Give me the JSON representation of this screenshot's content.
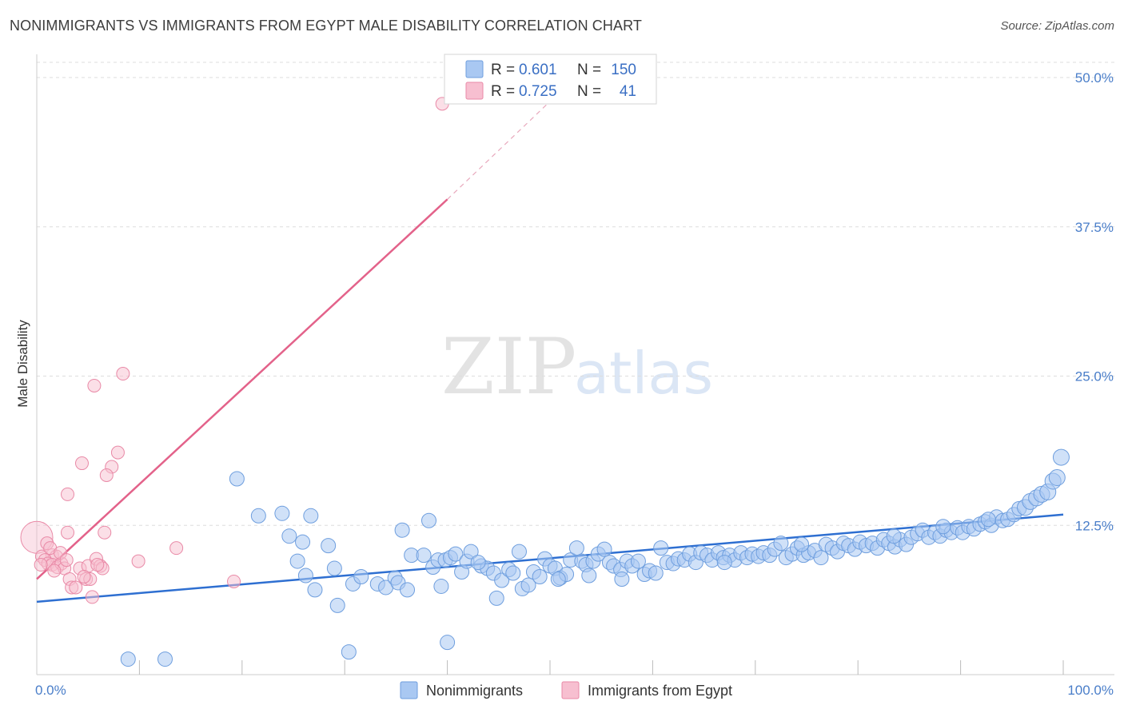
{
  "title": "NONIMMIGRANTS VS IMMIGRANTS FROM EGYPT MALE DISABILITY CORRELATION CHART",
  "source": "Source: ZipAtlas.com",
  "watermark": {
    "zip": "ZIP",
    "atlas": "atlas"
  },
  "colors": {
    "blue_fill": "#a9c8f2",
    "blue_stroke": "#6e9ede",
    "blue_line": "#2e6fd1",
    "pink_fill": "#f7bfd0",
    "pink_stroke": "#e98aa7",
    "pink_line": "#e3628a",
    "tick_text": "#4a7ec9",
    "grid": "#dddddd"
  },
  "legend": {
    "rows": [
      {
        "r_label": "R =",
        "r_value": "0.601",
        "n_label": "N =",
        "n_value": "150"
      },
      {
        "r_label": "R =",
        "r_value": "0.725",
        "n_label": "N =",
        "n_value": "41"
      }
    ]
  },
  "bottom_legend": [
    "Nonimmigrants",
    "Immigrants from Egypt"
  ],
  "chart_data": {
    "type": "scatter",
    "xlabel": "",
    "ylabel": "Male Disability",
    "xlim": [
      0,
      100
    ],
    "ylim": [
      0,
      50
    ],
    "x_tick_labels": [
      "0.0%",
      "100.0%"
    ],
    "y_ticks": [
      12.5,
      25.0,
      37.5,
      50.0
    ],
    "y_tick_labels": [
      "12.5%",
      "25.0%",
      "37.5%",
      "50.0%"
    ],
    "series": [
      {
        "name": "Nonimmigrants",
        "r": 0.601,
        "n": 150,
        "trend": {
          "x0": 0,
          "y0": 6.1,
          "x1": 100,
          "y1": 13.4
        },
        "points": [
          [
            8.9,
            1.3
          ],
          [
            12.5,
            1.3
          ],
          [
            19.5,
            16.4
          ],
          [
            21.6,
            13.3
          ],
          [
            23.9,
            13.5
          ],
          [
            24.6,
            11.6
          ],
          [
            25.4,
            9.5
          ],
          [
            25.9,
            11.1
          ],
          [
            26.2,
            8.3
          ],
          [
            26.7,
            13.3
          ],
          [
            27.1,
            7.1
          ],
          [
            28.4,
            10.8
          ],
          [
            29.0,
            8.9
          ],
          [
            29.3,
            5.8
          ],
          [
            30.4,
            1.9
          ],
          [
            30.8,
            7.6
          ],
          [
            31.6,
            8.2
          ],
          [
            33.2,
            7.6
          ],
          [
            34.0,
            7.3
          ],
          [
            34.9,
            8.1
          ],
          [
            35.2,
            7.7
          ],
          [
            35.6,
            12.1
          ],
          [
            36.1,
            7.1
          ],
          [
            36.5,
            10.0
          ],
          [
            37.7,
            10.0
          ],
          [
            38.2,
            12.9
          ],
          [
            38.6,
            9.0
          ],
          [
            39.1,
            9.6
          ],
          [
            39.4,
            7.4
          ],
          [
            39.8,
            9.6
          ],
          [
            40.0,
            2.7
          ],
          [
            40.3,
            9.8
          ],
          [
            40.8,
            10.1
          ],
          [
            41.4,
            8.6
          ],
          [
            41.9,
            9.5
          ],
          [
            42.3,
            10.3
          ],
          [
            43.3,
            9.1
          ],
          [
            43.9,
            8.9
          ],
          [
            44.5,
            8.5
          ],
          [
            44.8,
            6.4
          ],
          [
            45.3,
            7.9
          ],
          [
            46.0,
            8.8
          ],
          [
            46.4,
            8.5
          ],
          [
            47.3,
            7.2
          ],
          [
            47.9,
            7.5
          ],
          [
            48.4,
            8.6
          ],
          [
            49.0,
            8.2
          ],
          [
            49.5,
            9.7
          ],
          [
            50.0,
            9.1
          ],
          [
            50.5,
            8.9
          ],
          [
            51.0,
            8.1
          ],
          [
            51.6,
            8.4
          ],
          [
            52.0,
            9.6
          ],
          [
            52.6,
            10.6
          ],
          [
            53.1,
            9.5
          ],
          [
            53.5,
            9.2
          ],
          [
            54.2,
            9.5
          ],
          [
            54.7,
            10.1
          ],
          [
            55.3,
            10.5
          ],
          [
            55.8,
            9.4
          ],
          [
            56.2,
            9.1
          ],
          [
            56.9,
            8.8
          ],
          [
            57.5,
            9.5
          ],
          [
            58.0,
            9.1
          ],
          [
            58.6,
            9.5
          ],
          [
            59.2,
            8.4
          ],
          [
            59.7,
            8.7
          ],
          [
            60.3,
            8.5
          ],
          [
            60.8,
            10.6
          ],
          [
            61.4,
            9.4
          ],
          [
            62.0,
            9.3
          ],
          [
            62.5,
            9.7
          ],
          [
            63.1,
            9.6
          ],
          [
            63.6,
            10.1
          ],
          [
            64.2,
            9.4
          ],
          [
            64.7,
            10.2
          ],
          [
            65.3,
            10.0
          ],
          [
            65.8,
            9.6
          ],
          [
            66.4,
            10.2
          ],
          [
            66.9,
            9.8
          ],
          [
            67.5,
            10.0
          ],
          [
            68.0,
            9.6
          ],
          [
            68.6,
            10.2
          ],
          [
            69.2,
            9.8
          ],
          [
            69.7,
            10.1
          ],
          [
            70.3,
            9.9
          ],
          [
            70.8,
            10.2
          ],
          [
            71.4,
            10.0
          ],
          [
            71.9,
            10.5
          ],
          [
            72.5,
            11.0
          ],
          [
            73.0,
            9.8
          ],
          [
            73.6,
            10.1
          ],
          [
            74.1,
            10.6
          ],
          [
            74.7,
            10.0
          ],
          [
            75.2,
            10.2
          ],
          [
            75.8,
            10.4
          ],
          [
            76.4,
            9.8
          ],
          [
            76.9,
            10.9
          ],
          [
            77.5,
            10.6
          ],
          [
            78.0,
            10.3
          ],
          [
            78.6,
            11.0
          ],
          [
            79.1,
            10.8
          ],
          [
            79.7,
            10.5
          ],
          [
            80.2,
            11.1
          ],
          [
            80.8,
            10.8
          ],
          [
            81.4,
            11.0
          ],
          [
            81.9,
            10.6
          ],
          [
            82.5,
            11.3
          ],
          [
            83.0,
            11.0
          ],
          [
            83.6,
            10.7
          ],
          [
            84.1,
            11.3
          ],
          [
            84.7,
            10.9
          ],
          [
            85.2,
            11.5
          ],
          [
            85.8,
            11.8
          ],
          [
            86.3,
            12.1
          ],
          [
            86.9,
            11.5
          ],
          [
            87.5,
            11.9
          ],
          [
            88.0,
            11.6
          ],
          [
            88.6,
            12.1
          ],
          [
            89.1,
            11.9
          ],
          [
            89.7,
            12.3
          ],
          [
            90.2,
            11.9
          ],
          [
            90.8,
            12.4
          ],
          [
            91.3,
            12.2
          ],
          [
            91.9,
            12.6
          ],
          [
            92.4,
            12.8
          ],
          [
            93.0,
            12.5
          ],
          [
            93.5,
            13.2
          ],
          [
            94.1,
            12.9
          ],
          [
            94.6,
            13.0
          ],
          [
            95.2,
            13.4
          ],
          [
            95.7,
            13.9
          ],
          [
            96.3,
            14.0
          ],
          [
            96.8,
            14.5
          ],
          [
            97.4,
            14.8
          ],
          [
            97.9,
            15.1
          ],
          [
            98.5,
            15.3
          ],
          [
            99.0,
            16.2
          ],
          [
            99.4,
            16.5
          ],
          [
            99.8,
            18.2
          ],
          [
            43.0,
            9.4
          ],
          [
            47.0,
            10.3
          ],
          [
            50.8,
            8.0
          ],
          [
            53.8,
            8.3
          ],
          [
            57.0,
            8.0
          ],
          [
            67.0,
            9.4
          ],
          [
            74.5,
            10.9
          ],
          [
            83.5,
            11.6
          ],
          [
            88.3,
            12.4
          ],
          [
            92.7,
            13.0
          ]
        ]
      },
      {
        "name": "Immigrants from Egypt",
        "r": 0.725,
        "n": 41,
        "trend": {
          "x0": 0,
          "y0": 8.0,
          "x1": 40.0,
          "y1": 39.8,
          "dashed_to": {
            "x": 50.0,
            "y": 48.0
          }
        },
        "points": [
          [
            39.5,
            47.8
          ],
          [
            8.4,
            25.2
          ],
          [
            5.6,
            24.2
          ],
          [
            7.9,
            18.6
          ],
          [
            7.3,
            17.4
          ],
          [
            4.4,
            17.7
          ],
          [
            6.8,
            16.7
          ],
          [
            3.0,
            15.1
          ],
          [
            3.0,
            11.9
          ],
          [
            6.6,
            11.9
          ],
          [
            1.0,
            11.0
          ],
          [
            1.5,
            10.0
          ],
          [
            1.9,
            9.9
          ],
          [
            0.5,
            9.9
          ],
          [
            0.8,
            9.6
          ],
          [
            1.1,
            9.3
          ],
          [
            1.5,
            9.2
          ],
          [
            2.0,
            9.0
          ],
          [
            2.4,
            9.3
          ],
          [
            2.7,
            8.9
          ],
          [
            3.2,
            8.0
          ],
          [
            3.4,
            7.3
          ],
          [
            3.8,
            7.3
          ],
          [
            4.2,
            8.9
          ],
          [
            4.8,
            8.0
          ],
          [
            5.0,
            9.1
          ],
          [
            5.2,
            8.0
          ],
          [
            5.4,
            6.5
          ],
          [
            5.8,
            9.7
          ],
          [
            6.2,
            9.1
          ],
          [
            6.4,
            8.9
          ],
          [
            9.9,
            9.5
          ],
          [
            13.6,
            10.6
          ],
          [
            19.2,
            7.8
          ],
          [
            0.4,
            9.2
          ],
          [
            1.3,
            10.6
          ],
          [
            2.3,
            10.2
          ],
          [
            1.7,
            8.7
          ],
          [
            2.9,
            9.6
          ],
          [
            4.6,
            8.2
          ],
          [
            5.9,
            9.2
          ]
        ]
      }
    ]
  }
}
